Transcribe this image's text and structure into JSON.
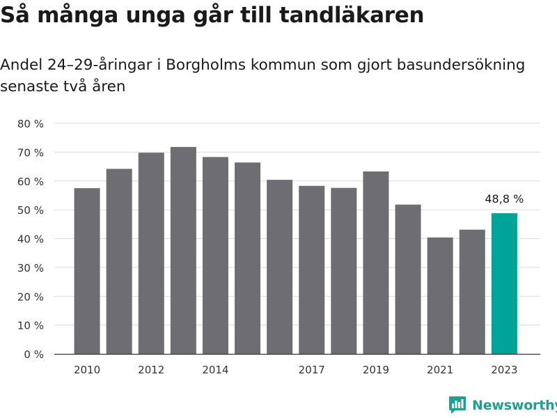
{
  "title": "Så många unga går till tandläkaren",
  "subtitle": "Andel 24–29-åringar i Borgholms kommun som gjort basundersökning senaste två åren",
  "brand": "Newsworthy",
  "colors": {
    "bar": "#6d6d72",
    "highlight": "#00a398",
    "grid": "#dcdcdc",
    "axis": "#333333",
    "brand": "#1e9f94"
  },
  "chart_data": {
    "type": "bar",
    "categories": [
      "2010",
      "2011",
      "2012",
      "2013",
      "2014",
      "2015",
      "2016",
      "2017",
      "2018",
      "2019",
      "2020",
      "2021",
      "2022",
      "2023"
    ],
    "values": [
      57.5,
      64.2,
      69.8,
      71.8,
      68.3,
      66.4,
      60.4,
      58.3,
      57.6,
      63.3,
      51.8,
      40.4,
      43.1,
      48.8
    ],
    "x_tick_labels": [
      "2010",
      "",
      "2012",
      "",
      "2014",
      "",
      "",
      "2017",
      "",
      "2019",
      "",
      "2021",
      "",
      "2023"
    ],
    "y_ticks": [
      0,
      10,
      20,
      30,
      40,
      50,
      60,
      70,
      80
    ],
    "y_tick_labels": [
      "0 %",
      "10 %",
      "20 %",
      "30 %",
      "40 %",
      "50 %",
      "60 %",
      "70 %",
      "80 %"
    ],
    "ylim": [
      0,
      80
    ],
    "highlight_index": 13,
    "annotation": "48,8 %",
    "grid": true,
    "xlabel": "",
    "ylabel": ""
  }
}
